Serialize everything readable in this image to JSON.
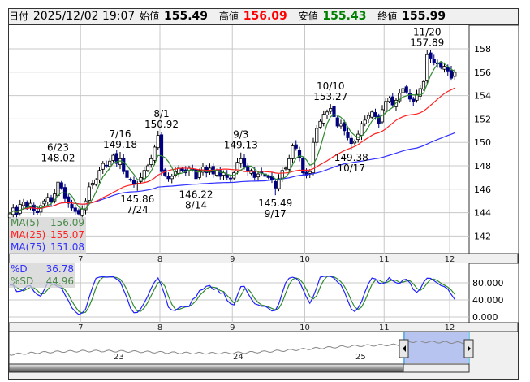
{
  "header": {
    "date_label": "日付",
    "date_value": "2025/12/02 19:07",
    "open_label": "始値",
    "open_value": "155.49",
    "high_label": "高値",
    "high_value": "156.09",
    "low_label": "安値",
    "low_value": "155.43",
    "close_label": "終値",
    "close_value": "155.99"
  },
  "colors": {
    "up_fill": "#ffffff",
    "down_fill": "#000080",
    "ma5": "#2e8b2e",
    "ma25": "#ff2020",
    "ma75": "#3030ff",
    "stoch_d": "#2020ff",
    "stoch_sd": "#2e8b2e",
    "high_text": "#ff0000",
    "low_text": "#008000"
  },
  "legend_ma": [
    {
      "name": "MA(5)",
      "value": "156.09",
      "color": "#4a8a4a"
    },
    {
      "name": "MA(25)",
      "value": "155.07",
      "color": "#ff2020"
    },
    {
      "name": "MA(75)",
      "value": "151.08",
      "color": "#3030ff"
    }
  ],
  "legend_stoch": [
    {
      "name": "%D",
      "value": "36.78",
      "color": "#3030ff"
    },
    {
      "name": "%SD",
      "value": "44.96",
      "color": "#4a8a4a"
    }
  ],
  "chart_data": {
    "type": "candlestick",
    "price_axis": {
      "ticks": [
        "158",
        "156",
        "154",
        "152",
        "150",
        "148",
        "146",
        "144",
        "142"
      ],
      "range": [
        141,
        159.5
      ]
    },
    "oscillator_axis": {
      "ticks": [
        "80.000",
        "40.000",
        "0.000"
      ],
      "range": [
        0,
        100
      ]
    },
    "month_labels": [
      {
        "label": "7",
        "index": 21
      },
      {
        "label": "8",
        "index": 44
      },
      {
        "label": "9",
        "index": 65
      },
      {
        "label": "10",
        "index": 86
      },
      {
        "label": "11",
        "index": 109
      },
      {
        "label": "12",
        "index": 128
      }
    ],
    "closes": [
      143.9,
      144.4,
      143.8,
      144.7,
      144.9,
      144.4,
      144.8,
      144.2,
      144.0,
      144.6,
      145.0,
      145.3,
      144.9,
      145.6,
      146.6,
      146.1,
      145.2,
      144.8,
      144.4,
      144.1,
      143.9,
      144.3,
      145.0,
      146.2,
      146.5,
      146.8,
      147.6,
      148.2,
      148.0,
      148.4,
      148.9,
      148.2,
      148.6,
      147.5,
      147.0,
      146.8,
      146.4,
      146.5,
      147.0,
      147.6,
      148.0,
      148.6,
      149.6,
      150.6,
      147.5,
      147.2,
      146.9,
      147.1,
      147.5,
      147.8,
      147.6,
      147.4,
      147.8,
      147.7,
      146.9,
      147.6,
      147.9,
      147.4,
      147.8,
      147.3,
      147.6,
      147.1,
      147.4,
      147.0,
      146.9,
      147.4,
      148.3,
      148.6,
      147.9,
      147.5,
      147.6,
      147.0,
      147.3,
      147.4,
      147.1,
      147.0,
      146.8,
      146.1,
      146.9,
      147.6,
      147.8,
      148.6,
      149.7,
      149.5,
      148.7,
      147.4,
      147.2,
      147.5,
      150.0,
      151.2,
      151.8,
      152.4,
      152.6,
      152.9,
      152.2,
      151.4,
      151.6,
      151.0,
      150.4,
      149.9,
      150.1,
      150.7,
      151.6,
      151.9,
      152.3,
      152.6,
      152.2,
      151.6,
      152.8,
      153.5,
      153.8,
      153.2,
      153.6,
      154.2,
      154.6,
      154.3,
      153.7,
      153.5,
      154.1,
      154.6,
      155.2,
      157.5,
      157.2,
      156.8,
      156.7,
      156.4,
      156.5,
      156.1,
      155.49,
      155.99
    ],
    "annotations": [
      {
        "date": "6/23",
        "value": "148.02",
        "index": 14,
        "pos": "above"
      },
      {
        "date": "7/16",
        "value": "149.18",
        "index": 32,
        "pos": "above"
      },
      {
        "date": "7/24",
        "value": "145.86",
        "index": 37,
        "pos": "below"
      },
      {
        "date": "8/1",
        "value": "150.92",
        "index": 44,
        "pos": "above"
      },
      {
        "date": "8/14",
        "value": "146.22",
        "index": 54,
        "pos": "below"
      },
      {
        "date": "9/3",
        "value": "149.13",
        "index": 67,
        "pos": "above"
      },
      {
        "date": "9/17",
        "value": "145.49",
        "index": 77,
        "pos": "below"
      },
      {
        "date": "10/10",
        "value": "153.27",
        "index": 93,
        "pos": "above"
      },
      {
        "date": "10/17",
        "value": "149.38",
        "index": 99,
        "pos": "below"
      },
      {
        "date": "11/20",
        "value": "157.89",
        "index": 121,
        "pos": "above"
      }
    ]
  },
  "navigator": {
    "year_labels": [
      "23",
      "24",
      "25"
    ]
  }
}
